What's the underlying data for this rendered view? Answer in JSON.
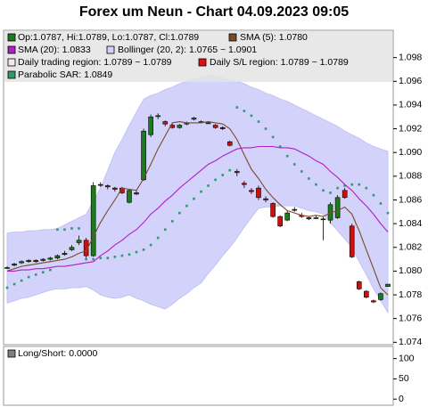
{
  "chart_data": [
    {
      "type": "candlestick",
      "title": "Forex um Neun - Chart 04.09.2023 09:05",
      "ohlc_legend": "Op:1.0787, Hi:1.0789, Lo:1.0787, Cl:1.0789",
      "up_color": "#1e7a1e",
      "down_color": "#cc1010",
      "open": [
        1.0803,
        1.0805,
        1.0807,
        1.0808,
        1.0809,
        1.0809,
        1.081,
        1.0811,
        1.0814,
        1.0818,
        1.0824,
        1.0826,
        1.0813,
        1.0873,
        1.0872,
        1.087,
        1.087,
        1.0858,
        1.0866,
        1.0877,
        1.0915,
        1.0931,
        1.0926,
        1.0923,
        1.0921,
        1.0924,
        1.0928,
        1.0926,
        1.0925,
        1.0923,
        1.0921,
        1.0909,
        1.0884,
        1.0874,
        1.0868,
        1.087,
        1.0861,
        1.0857,
        1.0846,
        1.0843,
        1.0852,
        1.0847,
        1.0845,
        1.0845,
        1.0844,
        1.0843,
        1.0845,
        1.0868,
        1.0838,
        1.0791,
        1.0783,
        1.0775,
        1.0776,
        1.0787
      ],
      "high": [
        1.0804,
        1.0807,
        1.0809,
        1.081,
        1.081,
        1.0811,
        1.0812,
        1.0814,
        1.0817,
        1.0822,
        1.083,
        1.0828,
        1.0875,
        1.0875,
        1.0873,
        1.0871,
        1.0871,
        1.0869,
        1.0868,
        1.092,
        1.0932,
        1.0933,
        1.0927,
        1.0924,
        1.0924,
        1.0926,
        1.093,
        1.0927,
        1.0926,
        1.0924,
        1.0922,
        1.091,
        1.0886,
        1.0876,
        1.087,
        1.0872,
        1.0863,
        1.0858,
        1.0847,
        1.0851,
        1.0854,
        1.0849,
        1.0846,
        1.0847,
        1.0846,
        1.0858,
        1.0864,
        1.087,
        1.084,
        1.0792,
        1.0784,
        1.0776,
        1.0782,
        1.0789
      ],
      "low": [
        1.0802,
        1.0804,
        1.0806,
        1.0807,
        1.0807,
        1.0808,
        1.0809,
        1.081,
        1.0813,
        1.0817,
        1.0822,
        1.0811,
        1.0812,
        1.0871,
        1.0869,
        1.0867,
        1.0865,
        1.0857,
        1.0864,
        1.0876,
        1.0913,
        1.0928,
        1.0922,
        1.092,
        1.092,
        1.0923,
        1.0927,
        1.0925,
        1.0924,
        1.092,
        1.0919,
        1.0905,
        1.088,
        1.087,
        1.0865,
        1.086,
        1.0858,
        1.0845,
        1.0837,
        1.0842,
        1.085,
        1.0845,
        1.0843,
        1.0844,
        1.0826,
        1.084,
        1.0844,
        1.0861,
        1.0811,
        1.0784,
        1.0777,
        1.0773,
        1.0775,
        1.0787
      ],
      "close": [
        1.0803,
        1.0806,
        1.0808,
        1.0809,
        1.0808,
        1.081,
        1.0811,
        1.0813,
        1.0815,
        1.082,
        1.0826,
        1.0813,
        1.0872,
        1.0873,
        1.0871,
        1.0869,
        1.0866,
        1.0868,
        1.0865,
        1.0918,
        1.093,
        1.0931,
        1.0924,
        1.0921,
        1.0923,
        1.0925,
        1.0929,
        1.0926,
        1.0925,
        1.0921,
        1.092,
        1.0906,
        1.0883,
        1.0873,
        1.0867,
        1.0862,
        1.086,
        1.0846,
        1.0838,
        1.0849,
        1.0852,
        1.0846,
        1.0844,
        1.0845,
        1.0844,
        1.0856,
        1.0862,
        1.0862,
        1.0812,
        1.0785,
        1.0778,
        1.0774,
        1.0781,
        1.0789
      ],
      "series": [
        {
          "name": "SMA (5): 1.0780",
          "kind": "line",
          "color": "#7a4a2a",
          "values": [
            1.08,
            1.0802,
            1.0804,
            1.0805,
            1.0806,
            1.0807,
            1.0808,
            1.0809,
            1.081,
            1.0812,
            1.0815,
            1.0817,
            1.0829,
            1.0841,
            1.0851,
            1.086,
            1.087,
            1.0869,
            1.0868,
            1.0878,
            1.089,
            1.0903,
            1.0914,
            1.0925,
            1.0926,
            1.0925,
            1.0925,
            1.0925,
            1.0926,
            1.0925,
            1.0924,
            1.092,
            1.0911,
            1.0898,
            1.0886,
            1.0878,
            1.0869,
            1.0862,
            1.0856,
            1.0851,
            1.0849,
            1.0847,
            1.0846,
            1.0847,
            1.0846,
            1.0849,
            1.0851,
            1.0854,
            1.0848,
            1.0834,
            1.0818,
            1.0802,
            1.0786,
            1.078
          ]
        },
        {
          "name": "SMA (20): 1.0833",
          "kind": "line",
          "color": "#b020c8",
          "values": [
            1.08,
            1.08,
            1.0801,
            1.0801,
            1.0802,
            1.0802,
            1.0803,
            1.0804,
            1.0804,
            1.0805,
            1.0806,
            1.0807,
            1.0808,
            1.0813,
            1.0817,
            1.0822,
            1.0826,
            1.0831,
            1.0835,
            1.0841,
            1.0848,
            1.0853,
            1.0859,
            1.0864,
            1.087,
            1.0875,
            1.088,
            1.0885,
            1.089,
            1.0893,
            1.0897,
            1.09,
            1.0903,
            1.0904,
            1.0904,
            1.0905,
            1.0905,
            1.0905,
            1.0904,
            1.0904,
            1.0903,
            1.09,
            1.0897,
            1.0893,
            1.089,
            1.0884,
            1.0879,
            1.0873,
            1.0868,
            1.0861,
            1.0855,
            1.0848,
            1.084,
            1.0833
          ]
        },
        {
          "name": "Bollinger (20, 2): 1.0765 ~ 1.0901",
          "kind": "band",
          "color": "#d2d2fa",
          "upper": [
            1.0832,
            1.0833,
            1.0833,
            1.0834,
            1.0834,
            1.0835,
            1.0835,
            1.0836,
            1.0839,
            1.0842,
            1.0845,
            1.0848,
            1.0859,
            1.087,
            1.0885,
            1.09,
            1.0911,
            1.0923,
            1.0934,
            1.0945,
            1.0948,
            1.095,
            1.0953,
            1.0955,
            1.0958,
            1.096,
            1.0962,
            1.0963,
            1.0965,
            1.0964,
            1.0963,
            1.0961,
            1.096,
            1.0958,
            1.0955,
            1.0953,
            1.095,
            1.0948,
            1.0945,
            1.0943,
            1.094,
            1.0937,
            1.0934,
            1.0931,
            1.0928,
            1.0925,
            1.0922,
            1.0918,
            1.0915,
            1.0912,
            1.0908,
            1.0905,
            1.0903,
            1.0901
          ],
          "lower": [
            1.0773,
            1.0775,
            1.0777,
            1.0778,
            1.078,
            1.0782,
            1.0784,
            1.0785,
            1.0785,
            1.0786,
            1.0786,
            1.0787,
            1.0784,
            1.078,
            1.0778,
            1.0777,
            1.0778,
            1.078,
            1.0777,
            1.0775,
            1.0772,
            1.077,
            1.0768,
            1.0772,
            1.0777,
            1.0781,
            1.0786,
            1.079,
            1.0798,
            1.0805,
            1.0813,
            1.082,
            1.0828,
            1.0837,
            1.0845,
            1.0853,
            1.0854,
            1.0854,
            1.0855,
            1.0855,
            1.0855,
            1.0853,
            1.0851,
            1.085,
            1.0848,
            1.0841,
            1.0834,
            1.0827,
            1.082,
            1.0808,
            1.0797,
            1.0785,
            1.0775,
            1.0765
          ]
        },
        {
          "name": "Daily trading region: 1.0789 ~ 1.0789",
          "kind": "legend",
          "color": "#f4e8e8"
        },
        {
          "name": "Daily S/L region: 1.0789 ~ 1.0789",
          "kind": "legend",
          "color": "#dd1010"
        },
        {
          "name": "Parabolic SAR: 1.0849",
          "kind": "dots",
          "color": "#2e9a6a",
          "values": [
            1.0786,
            1.0789,
            1.0792,
            1.0795,
            1.0797,
            1.0799,
            1.0801,
            1.0835,
            1.0835,
            1.0836,
            1.0836,
            1.081,
            1.081,
            1.0811,
            1.0811,
            1.0812,
            1.0813,
            1.0814,
            1.0816,
            1.0818,
            1.0822,
            1.0828,
            1.0835,
            1.0842,
            1.0849,
            1.0855,
            1.0861,
            1.0867,
            1.0872,
            1.0877,
            1.0881,
            1.0885,
            1.0938,
            1.0935,
            1.0931,
            1.0926,
            1.092,
            1.0913,
            1.0905,
            1.0897,
            1.089,
            1.0884,
            1.0878,
            1.0873,
            1.0868,
            1.0866,
            1.087,
            1.0872,
            1.0873,
            1.0873,
            1.087,
            1.0864,
            1.0857,
            1.0849
          ]
        }
      ],
      "ylim": [
        1.0738,
        1.1003
      ],
      "yticks": [
        1.074,
        1.076,
        1.078,
        {
          "value": 1.08,
          "label": "1.080"
        },
        1.082,
        1.084,
        1.086,
        1.088,
        {
          "value": 1.09,
          "label": "1.090"
        },
        1.092,
        1.094,
        1.096,
        1.098
      ],
      "grid": false
    },
    {
      "type": "line",
      "series": [
        {
          "name": "Long/Short: 0.0000",
          "color": "#808080",
          "values": []
        }
      ],
      "ylim": [
        -15,
        130
      ],
      "yticks": [
        0,
        50,
        100
      ],
      "grid": false
    }
  ]
}
